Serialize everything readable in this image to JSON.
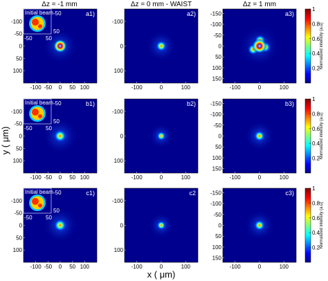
{
  "chart_data": {
    "type": "heatmap",
    "column_titles": [
      "Δz = -1 mm",
      "Δz = 0 mm - WAIST",
      "Δz = 1 mm"
    ],
    "xlabel": "x ( μm)",
    "ylabel": "y ( μm)",
    "panel_labels": [
      [
        "a1)",
        "a2)",
        "a3)"
      ],
      [
        "b1)",
        "b2)",
        "b3)"
      ],
      [
        "c1)",
        "c2",
        "c3)"
      ]
    ],
    "inset_label": "Initial beam",
    "colorbar": {
      "label": "Normalized intensity (a.u)",
      "range": [
        0,
        1
      ],
      "ticks": [
        "1",
        "0.8",
        "0.6",
        "0.4",
        "0.2"
      ],
      "colormap": "jet"
    },
    "axes": {
      "col1_x_ticks": [
        "-100",
        "-50",
        "0",
        "50",
        "100"
      ],
      "col1_y_ticks": [
        "-100",
        "-50",
        "0",
        "50",
        "100"
      ],
      "col2_x_ticks": [
        "-100",
        "0",
        "100"
      ],
      "col2_y_ticks": [
        "-100",
        "0",
        "100"
      ],
      "col3_x_ticks": [
        "-100",
        "0",
        "100"
      ],
      "col3_y_ticks": [
        "-150",
        "-100",
        "-50",
        "0",
        "50",
        "100",
        "150"
      ],
      "inset_x_ticks": [
        "-50",
        "50"
      ],
      "inset_y_ticks": [
        "-50",
        "50"
      ]
    },
    "beams": [
      [
        {
          "x": 0,
          "y": 0,
          "sigma": 7,
          "ring": true,
          "rings": 1
        },
        {
          "x": 0,
          "y": 0,
          "sigma": 6,
          "ring": false,
          "rings": 1
        },
        {
          "x": 0,
          "y": 0,
          "sigma": 8,
          "ring": true,
          "rings": 3
        }
      ],
      [
        {
          "x": 0,
          "y": 0,
          "sigma": 7,
          "ring": false,
          "rings": 1
        },
        {
          "x": 0,
          "y": 0,
          "sigma": 5,
          "ring": false,
          "rings": 1
        },
        {
          "x": 0,
          "y": 0,
          "sigma": 6,
          "ring": false,
          "rings": 1
        }
      ],
      [
        {
          "x": 0,
          "y": 0,
          "sigma": 7,
          "ring": false,
          "rings": 1
        },
        {
          "x": 0,
          "y": 0,
          "sigma": 5,
          "ring": false,
          "rings": 1
        },
        {
          "x": 0,
          "y": 0,
          "sigma": 6,
          "ring": false,
          "rings": 1
        }
      ]
    ],
    "colors": {
      "background": "#00008f",
      "peak": "#ff0000"
    }
  }
}
